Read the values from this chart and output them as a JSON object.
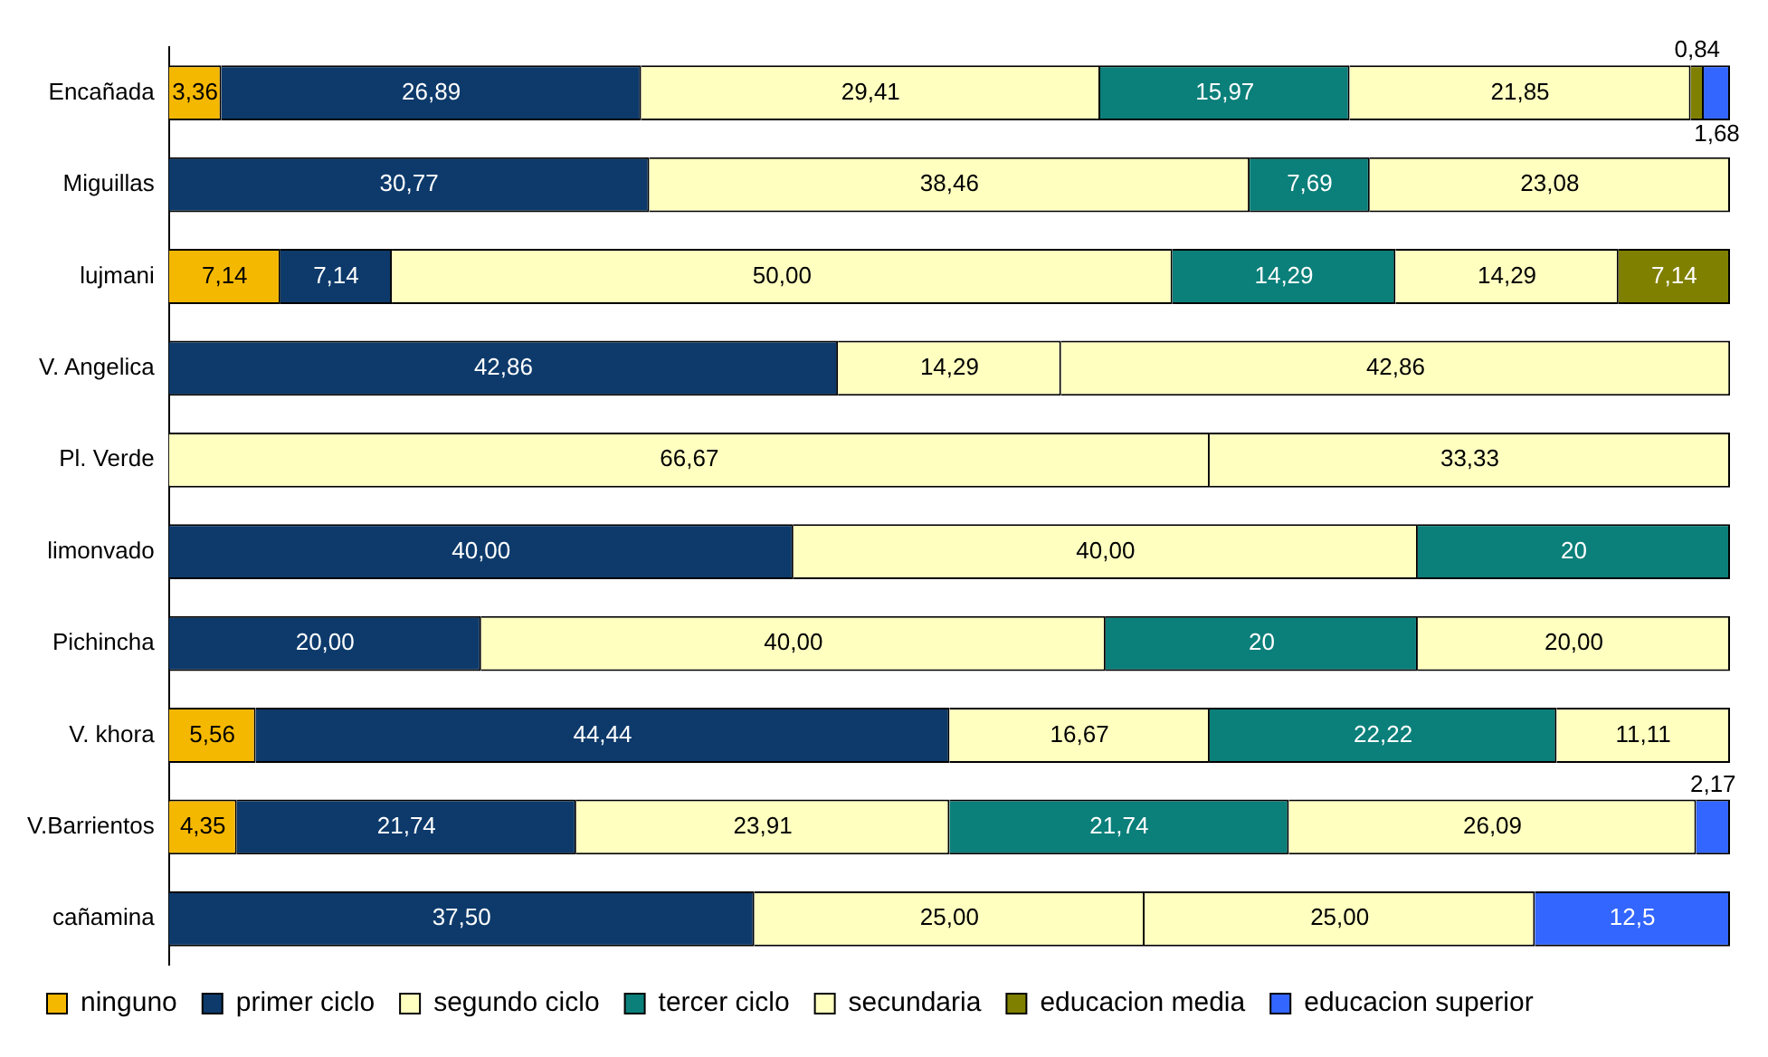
{
  "chart_data": {
    "type": "bar",
    "orientation": "horizontal",
    "stacked": true,
    "categories": [
      "Encañada",
      "Miguillas",
      "lujmani",
      "V. Angelica",
      "Pl. Verde",
      "limonvado",
      "Pichincha",
      "V. khora",
      "V.Barrientos",
      "cañamina"
    ],
    "series": [
      {
        "name": "ninguno",
        "color": "#f5b800",
        "values": [
          3.36,
          null,
          7.14,
          null,
          null,
          null,
          null,
          5.56,
          4.35,
          null
        ],
        "value_labels": [
          "3,36",
          null,
          "7,14",
          null,
          null,
          null,
          null,
          "5,56",
          "4,35",
          null
        ]
      },
      {
        "name": "primer ciclo",
        "color": "#0d3a6b",
        "values": [
          26.89,
          30.77,
          7.14,
          42.86,
          null,
          40.0,
          20.0,
          44.44,
          21.74,
          37.5
        ],
        "value_labels": [
          "26,89",
          "30,77",
          "7,14",
          "42,86",
          null,
          "40,00",
          "20,00",
          "44,44",
          "21,74",
          "37,50"
        ]
      },
      {
        "name": "segundo ciclo",
        "color": "#ffffc0",
        "values": [
          29.41,
          38.46,
          50.0,
          14.29,
          66.67,
          40.0,
          40.0,
          16.67,
          23.91,
          25.0
        ],
        "value_labels": [
          "29,41",
          "38,46",
          "50,00",
          "14,29",
          "66,67",
          "40,00",
          "40,00",
          "16,67",
          "23,91",
          "25,00"
        ]
      },
      {
        "name": "tercer ciclo",
        "color": "#0b7f7a",
        "values": [
          15.97,
          7.69,
          14.29,
          null,
          null,
          20,
          20,
          22.22,
          21.74,
          null
        ],
        "value_labels": [
          "15,97",
          "7,69",
          "14,29",
          null,
          null,
          "20",
          "20",
          "22,22",
          "21,74",
          null
        ]
      },
      {
        "name": "secundaria",
        "color": "#ffffc0",
        "values": [
          21.85,
          23.08,
          14.29,
          42.86,
          33.33,
          null,
          20.0,
          11.11,
          26.09,
          25.0
        ],
        "value_labels": [
          "21,85",
          "23,08",
          "14,29",
          "42,86",
          "33,33",
          null,
          "20,00",
          "11,11",
          "26,09",
          "25,00"
        ]
      },
      {
        "name": "educacion media",
        "color": "#808000",
        "values": [
          0.84,
          null,
          7.14,
          null,
          null,
          null,
          null,
          null,
          null,
          null
        ],
        "value_labels": [
          "0,84",
          null,
          "7,14",
          null,
          null,
          null,
          null,
          null,
          null,
          null
        ]
      },
      {
        "name": "educacion superior",
        "color": "#3366ff",
        "values": [
          1.68,
          null,
          null,
          null,
          null,
          null,
          null,
          null,
          2.17,
          12.5
        ],
        "value_labels": [
          "1,68",
          null,
          null,
          null,
          null,
          null,
          null,
          null,
          "2,17",
          "12,5"
        ]
      }
    ],
    "xlim": [
      0,
      100
    ],
    "tick_labels": "y",
    "grid": false,
    "legend": "bottom"
  }
}
